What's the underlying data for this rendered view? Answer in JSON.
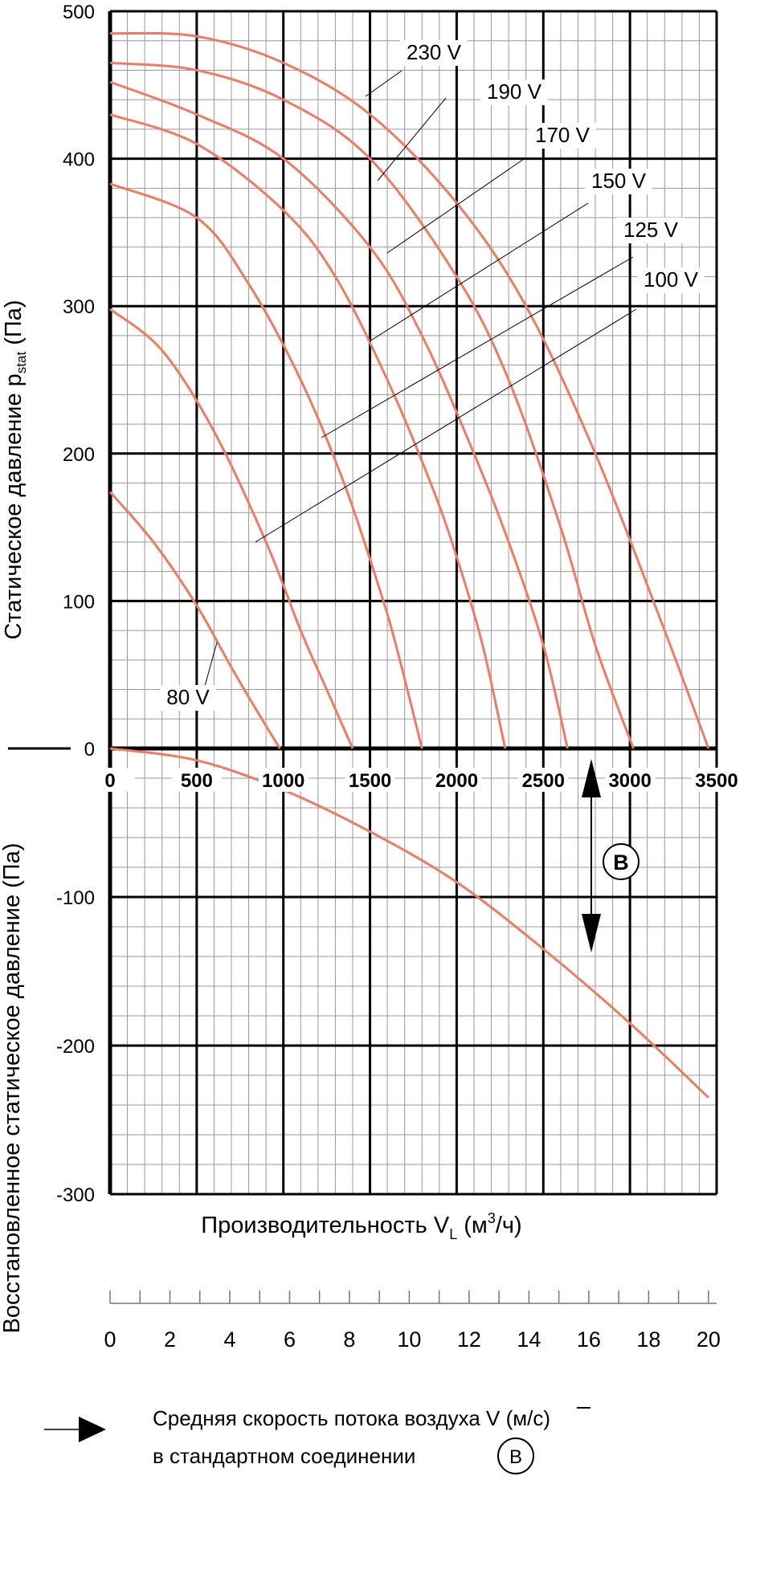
{
  "chart_data": {
    "type": "line",
    "x_axis": {
      "label_main": "Производительность V",
      "label_sub": "L",
      "label_unit_pre": " (м",
      "label_unit_sup": "3",
      "label_unit_post": "/ч)",
      "range": [
        0,
        3500
      ],
      "ticks": [
        0,
        500,
        1000,
        1500,
        2000,
        2500,
        3000,
        3500
      ]
    },
    "y_axis_upper": {
      "label_main": "Статическое давление p",
      "label_sub": "stat",
      "label_unit": " (Па)",
      "range": [
        0,
        500
      ],
      "ticks": [
        0,
        100,
        200,
        300,
        400,
        500
      ]
    },
    "y_axis_lower": {
      "label": "Восстановленное статическое давление (Па)",
      "range": [
        -300,
        0
      ],
      "ticks": [
        -100,
        -200,
        -300
      ]
    },
    "velocity_axis": {
      "ticks": [
        "0",
        "2",
        "4",
        "6",
        "8",
        "10",
        "12",
        "14",
        "16",
        "18",
        "20"
      ],
      "range": [
        0,
        20
      ],
      "max_flow_equivalent": 3453
    },
    "series": [
      {
        "name": "230 V",
        "x": [
          0,
          500,
          1000,
          1500,
          2000,
          2400,
          2800,
          3200,
          3453
        ],
        "y": [
          485,
          483,
          465,
          430,
          370,
          300,
          200,
          80,
          0
        ]
      },
      {
        "name": "190 V",
        "x": [
          0,
          500,
          1000,
          1500,
          2000,
          2300,
          2600,
          2800,
          3020
        ],
        "y": [
          465,
          460,
          440,
          400,
          320,
          250,
          150,
          70,
          0
        ]
      },
      {
        "name": "170 V",
        "x": [
          0,
          500,
          1000,
          1500,
          1800,
          2100,
          2300,
          2500,
          2640
        ],
        "y": [
          452,
          430,
          400,
          340,
          280,
          200,
          140,
          70,
          0
        ]
      },
      {
        "name": "150 V",
        "x": [
          0,
          500,
          1000,
          1300,
          1600,
          1850,
          2000,
          2150,
          2280
        ],
        "y": [
          430,
          410,
          365,
          320,
          250,
          180,
          130,
          70,
          0
        ]
      },
      {
        "name": "125 V",
        "x": [
          0,
          500,
          800,
          1100,
          1350,
          1550,
          1650,
          1800
        ],
        "y": [
          383,
          360,
          315,
          250,
          180,
          110,
          70,
          0
        ]
      },
      {
        "name": "100 V",
        "x": [
          0,
          300,
          600,
          900,
          1100,
          1250,
          1400
        ],
        "y": [
          298,
          270,
          215,
          140,
          80,
          40,
          0
        ]
      },
      {
        "name": "80 V",
        "x": [
          0,
          250,
          500,
          700,
          850,
          980
        ],
        "y": [
          174,
          140,
          97,
          55,
          25,
          0
        ]
      }
    ],
    "lower_curve": {
      "x": [
        0,
        500,
        1000,
        1500,
        2000,
        2500,
        3000,
        3453
      ],
      "y": [
        0,
        -8,
        -28,
        -56,
        -90,
        -135,
        -185,
        -235
      ]
    },
    "series_labels": [
      "230 V",
      "190 V",
      "170 V",
      "150 V",
      "125 V",
      "100 V",
      "80 V"
    ],
    "marker_label": "B",
    "legend_line1": "Средняя скорость потока воздуха ",
    "legend_vbar": "V",
    "legend_unit": " (м/с)",
    "legend_line2": "в стандартном соединении ",
    "legend_circle": "B",
    "curve_color": "#f07b62",
    "grid": true
  }
}
